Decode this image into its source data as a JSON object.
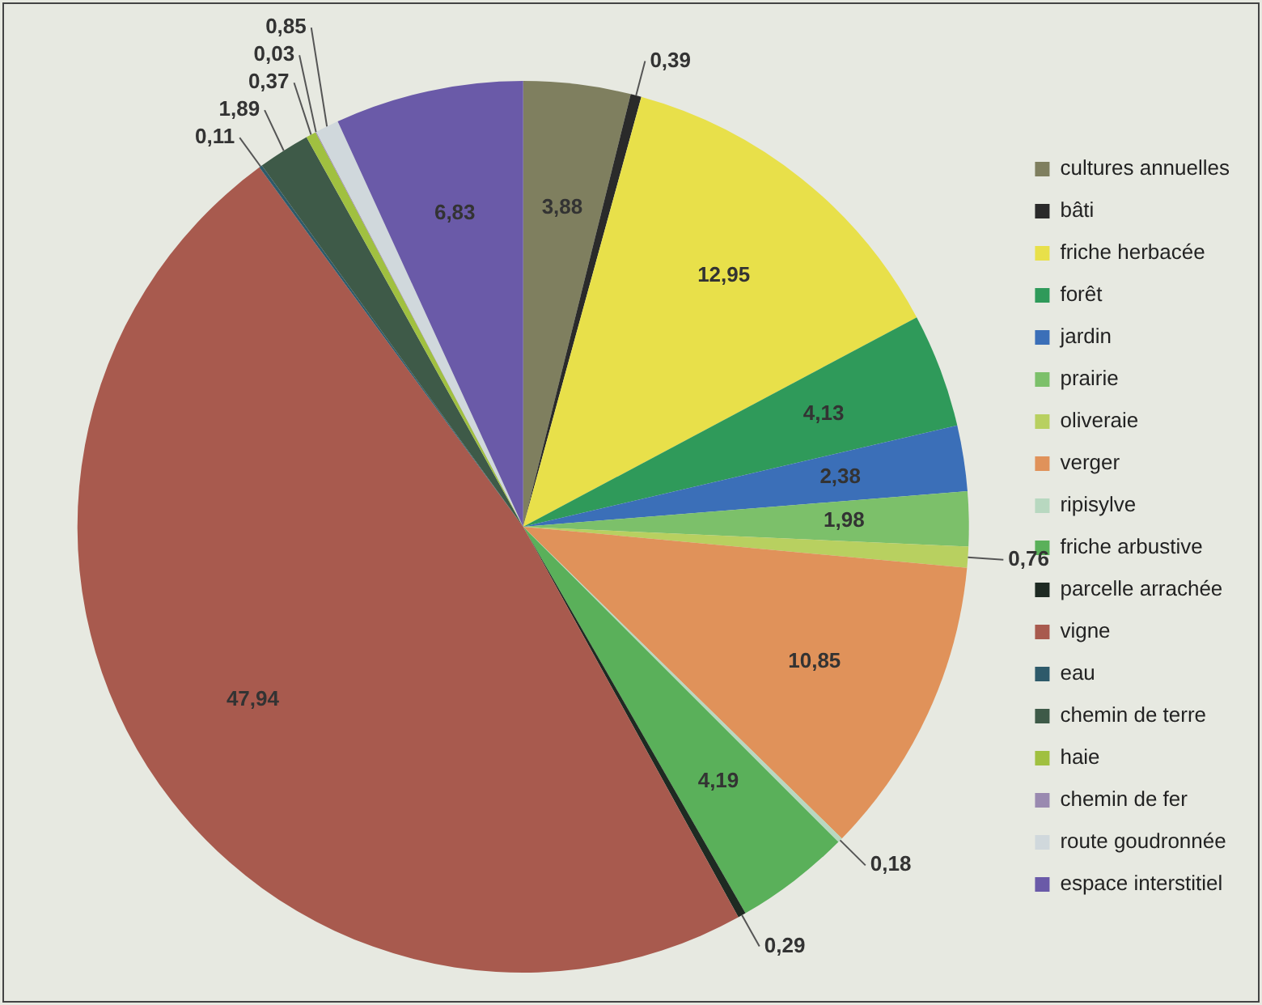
{
  "chart_data": {
    "type": "pie",
    "legend": "right",
    "categories": [
      "cultures annuelles",
      "bâti",
      "friche herbacée",
      "forêt",
      "jardin",
      "prairie",
      "oliveraie",
      "verger",
      "ripisylve",
      "friche arbustive",
      "parcelle arrachée",
      "vigne",
      "eau",
      "chemin de terre",
      "haie",
      "chemin de fer",
      "route goudronnée",
      "espace interstitiel"
    ],
    "values": [
      3.88,
      0.39,
      12.95,
      4.13,
      2.38,
      1.98,
      0.76,
      10.85,
      0.18,
      4.19,
      0.29,
      47.94,
      0.11,
      1.89,
      0.37,
      0.03,
      0.85,
      6.83
    ],
    "value_labels": [
      "3,88",
      "0,39",
      "12,95",
      "4,13",
      "2,38",
      "1,98",
      "0,76",
      "10,85",
      "0,18",
      "4,19",
      "0,29",
      "47,94",
      "0,11",
      "1,89",
      "0,37",
      "0,03",
      "0,85",
      "6,83"
    ],
    "colors": [
      "#7f7f5f",
      "#2a2a2a",
      "#e8e04a",
      "#2f9a5a",
      "#3b6fb8",
      "#7cc06a",
      "#b8d060",
      "#e0925a",
      "#b8d8c0",
      "#5ab05a",
      "#1e2a22",
      "#a85a4e",
      "#2e5a6a",
      "#3e5a48",
      "#a0c040",
      "#9a8ab0",
      "#d0d8dc",
      "#6a5aa8"
    ]
  }
}
